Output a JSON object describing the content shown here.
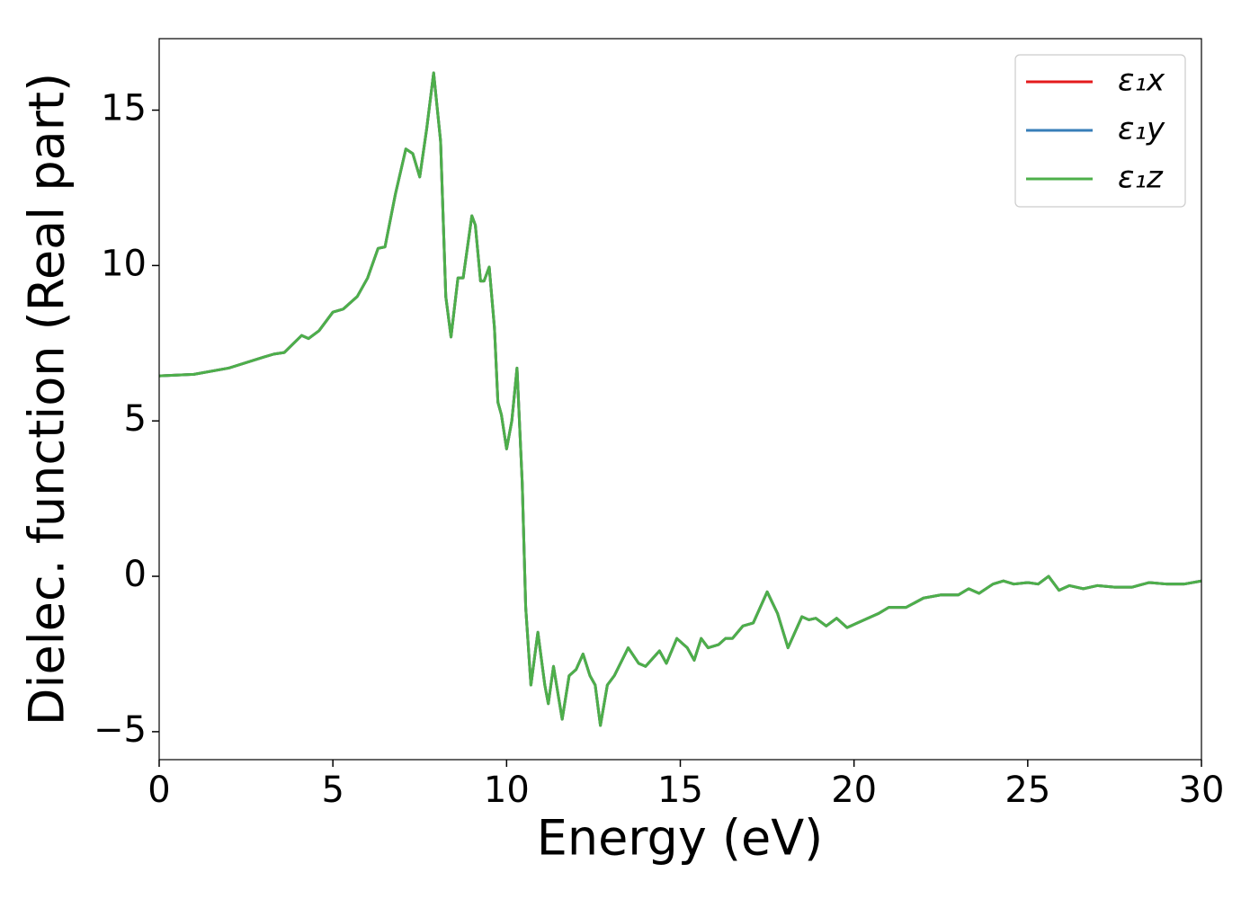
{
  "chart_data": {
    "type": "line",
    "xlabel": "Energy (eV)",
    "ylabel": "Dielec. function (Real part)",
    "x": [
      0,
      1,
      2,
      3,
      3.3,
      3.6,
      4.1,
      4.3,
      4.6,
      5,
      5.3,
      5.7,
      6.0,
      6.3,
      6.5,
      6.8,
      7.1,
      7.3,
      7.5,
      7.7,
      7.9,
      8.1,
      8.25,
      8.4,
      8.6,
      8.75,
      9.0,
      9.1,
      9.25,
      9.35,
      9.5,
      9.65,
      9.75,
      9.85,
      10.0,
      10.15,
      10.3,
      10.45,
      10.55,
      10.7,
      10.9,
      11.1,
      11.2,
      11.35,
      11.6,
      11.8,
      12.0,
      12.2,
      12.4,
      12.55,
      12.7,
      12.9,
      13.1,
      13.5,
      13.8,
      14.0,
      14.4,
      14.6,
      14.9,
      15.2,
      15.4,
      15.6,
      15.8,
      16.1,
      16.3,
      16.5,
      16.8,
      17.1,
      17.5,
      17.8,
      18.1,
      18.3,
      18.5,
      18.7,
      18.9,
      19.2,
      19.5,
      19.8,
      20.2,
      20.7,
      21,
      21.5,
      22,
      22.5,
      23,
      23.3,
      23.6,
      24,
      24.3,
      24.6,
      25,
      25.3,
      25.6,
      25.9,
      26.2,
      26.6,
      27,
      27.5,
      28,
      28.5,
      29,
      29.5,
      30
    ],
    "series": [
      {
        "name": "ε₁x",
        "color": "#e41a1c",
        "values": [
          6.45,
          6.5,
          6.7,
          7.05,
          7.15,
          7.2,
          7.75,
          7.65,
          7.9,
          8.5,
          8.6,
          9.0,
          9.6,
          10.55,
          10.6,
          12.3,
          13.75,
          13.6,
          12.85,
          14.4,
          16.2,
          14.0,
          9.0,
          7.7,
          9.6,
          9.6,
          11.6,
          11.3,
          9.5,
          9.5,
          9.95,
          8.0,
          5.6,
          5.2,
          4.1,
          5.0,
          6.7,
          3.0,
          -1.0,
          -3.5,
          -1.8,
          -3.5,
          -4.1,
          -2.9,
          -4.6,
          -3.2,
          -3.0,
          -2.5,
          -3.2,
          -3.5,
          -4.8,
          -3.5,
          -3.2,
          -2.3,
          -2.8,
          -2.9,
          -2.4,
          -2.8,
          -2.0,
          -2.3,
          -2.7,
          -2.0,
          -2.3,
          -2.2,
          -2.0,
          -2.0,
          -1.6,
          -1.5,
          -0.5,
          -1.2,
          -2.3,
          -1.8,
          -1.3,
          -1.4,
          -1.35,
          -1.6,
          -1.35,
          -1.65,
          -1.45,
          -1.2,
          -1.0,
          -1.0,
          -0.7,
          -0.6,
          -0.6,
          -0.4,
          -0.55,
          -0.25,
          -0.15,
          -0.25,
          -0.2,
          -0.25,
          0.0,
          -0.45,
          -0.3,
          -0.4,
          -0.3,
          -0.35,
          -0.35,
          -0.2,
          -0.25,
          -0.25,
          -0.15
        ]
      },
      {
        "name": "ε₁y",
        "color": "#377eb8",
        "values": [
          6.45,
          6.5,
          6.7,
          7.05,
          7.15,
          7.2,
          7.75,
          7.65,
          7.9,
          8.5,
          8.6,
          9.0,
          9.6,
          10.55,
          10.6,
          12.3,
          13.75,
          13.6,
          12.85,
          14.4,
          16.2,
          14.0,
          9.0,
          7.7,
          9.6,
          9.6,
          11.6,
          11.3,
          9.5,
          9.5,
          9.95,
          8.0,
          5.6,
          5.2,
          4.1,
          5.0,
          6.7,
          3.0,
          -1.0,
          -3.5,
          -1.8,
          -3.5,
          -4.1,
          -2.9,
          -4.6,
          -3.2,
          -3.0,
          -2.5,
          -3.2,
          -3.5,
          -4.8,
          -3.5,
          -3.2,
          -2.3,
          -2.8,
          -2.9,
          -2.4,
          -2.8,
          -2.0,
          -2.3,
          -2.7,
          -2.0,
          -2.3,
          -2.2,
          -2.0,
          -2.0,
          -1.6,
          -1.5,
          -0.5,
          -1.2,
          -2.3,
          -1.8,
          -1.3,
          -1.4,
          -1.35,
          -1.6,
          -1.35,
          -1.65,
          -1.45,
          -1.2,
          -1.0,
          -1.0,
          -0.7,
          -0.6,
          -0.6,
          -0.4,
          -0.55,
          -0.25,
          -0.15,
          -0.25,
          -0.2,
          -0.25,
          0.0,
          -0.45,
          -0.3,
          -0.4,
          -0.3,
          -0.35,
          -0.35,
          -0.2,
          -0.25,
          -0.25,
          -0.15
        ]
      },
      {
        "name": "ε₁z",
        "color": "#4daf4a",
        "values": [
          6.45,
          6.5,
          6.7,
          7.05,
          7.15,
          7.2,
          7.75,
          7.65,
          7.9,
          8.5,
          8.6,
          9.0,
          9.6,
          10.55,
          10.6,
          12.3,
          13.75,
          13.6,
          12.85,
          14.4,
          16.2,
          14.0,
          9.0,
          7.7,
          9.6,
          9.6,
          11.6,
          11.3,
          9.5,
          9.5,
          9.95,
          8.0,
          5.6,
          5.2,
          4.1,
          5.0,
          6.7,
          3.0,
          -1.0,
          -3.5,
          -1.8,
          -3.5,
          -4.1,
          -2.9,
          -4.6,
          -3.2,
          -3.0,
          -2.5,
          -3.2,
          -3.5,
          -4.8,
          -3.5,
          -3.2,
          -2.3,
          -2.8,
          -2.9,
          -2.4,
          -2.8,
          -2.0,
          -2.3,
          -2.7,
          -2.0,
          -2.3,
          -2.2,
          -2.0,
          -2.0,
          -1.6,
          -1.5,
          -0.5,
          -1.2,
          -2.3,
          -1.8,
          -1.3,
          -1.4,
          -1.35,
          -1.6,
          -1.35,
          -1.65,
          -1.45,
          -1.2,
          -1.0,
          -1.0,
          -0.7,
          -0.6,
          -0.6,
          -0.4,
          -0.55,
          -0.25,
          -0.15,
          -0.25,
          -0.2,
          -0.25,
          0.0,
          -0.45,
          -0.3,
          -0.4,
          -0.3,
          -0.35,
          -0.35,
          -0.2,
          -0.25,
          -0.25,
          -0.15
        ]
      }
    ],
    "xlim": [
      0,
      30
    ],
    "xticks": [
      0,
      5,
      10,
      15,
      20,
      25,
      30
    ],
    "ylim": [
      -5.9,
      17.3
    ],
    "yticks": [
      {
        "value": -5,
        "label": "−5"
      },
      0,
      5,
      10,
      15
    ],
    "grid": false,
    "legend": "upper right"
  }
}
